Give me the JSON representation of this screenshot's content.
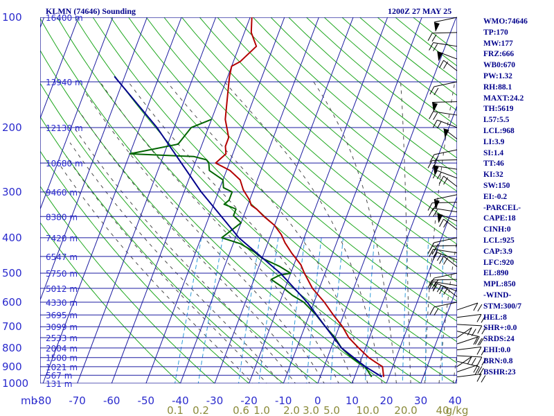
{
  "header": {
    "station": "KLMN (74646) Sounding",
    "valid_time": "1200Z 27 MAY 25"
  },
  "colors": {
    "frame": "#00008b",
    "isobar": "#1a1aa0",
    "dry_adiabat": "#1fa71f",
    "moist_adiabat": "#4a4a4a",
    "mixing_ratio": "#2a9ad8",
    "temperature": "#b40000",
    "dewpoint": "#006400",
    "parcel": "#00008b",
    "axis_text": "#2a2acd",
    "mixing_ratio_text": "#8b8b3a"
  },
  "indices": [
    "WMO:74646",
    "TP:170",
    "MW:177",
    "FRZ:666",
    "WB0:670",
    "PW:1.32",
    "RH:88.1",
    "MAXT:24.2",
    "TH:5619",
    "L57:5.5",
    "LCL:968",
    "LI:3.9",
    "SI:1.4",
    "TT:46",
    "KI:32",
    "SW:150",
    "EI:-0.2",
    "-PARCEL-",
    "CAPE:18",
    "CINH:0",
    "LCL:925",
    "CAP:3.9",
    "LFC:920",
    "EL:890",
    "MPL:850",
    "-WIND-",
    "STM:300/7",
    "HEL:8",
    "SHR+:0.0",
    "SRDS:24",
    "EHI:0.0",
    "BRN:0.8",
    "BSHR:23"
  ],
  "chart_data": {
    "type": "skew-t",
    "x_axis": {
      "unit_label": "mb",
      "tick_labels": [
        "-80",
        "-70",
        "-60",
        "-50",
        "-40",
        "-30",
        "-20",
        "-10",
        "0",
        "10",
        "20",
        "30",
        "40"
      ],
      "ticks": [
        -80,
        -70,
        -60,
        -50,
        -40,
        -30,
        -20,
        -10,
        0,
        10,
        20,
        30,
        40
      ],
      "range": [
        -80,
        40
      ]
    },
    "y_axis": {
      "scale": "log",
      "ticks": [
        100,
        200,
        300,
        400,
        500,
        600,
        700,
        800,
        900,
        1000
      ],
      "tick_labels": [
        "100",
        "200",
        "300",
        "400",
        "500",
        "600",
        "700",
        "800",
        "900",
        "1000"
      ],
      "range": [
        100,
        1000
      ]
    },
    "height_labels": [
      {
        "p": 100,
        "text": "16400 m"
      },
      {
        "p": 150,
        "text": "13940 m"
      },
      {
        "p": 200,
        "text": "12130 m"
      },
      {
        "p": 250,
        "text": "10680 m"
      },
      {
        "p": 300,
        "text": "9460 m"
      },
      {
        "p": 350,
        "text": "8380 m"
      },
      {
        "p": 400,
        "text": "7420 m"
      },
      {
        "p": 450,
        "text": "6547 m"
      },
      {
        "p": 500,
        "text": "5750 m"
      },
      {
        "p": 550,
        "text": "5012 m"
      },
      {
        "p": 600,
        "text": "4330 m"
      },
      {
        "p": 650,
        "text": "3695 m"
      },
      {
        "p": 700,
        "text": "3099 m"
      },
      {
        "p": 750,
        "text": "2533 m"
      },
      {
        "p": 800,
        "text": "2004 m"
      },
      {
        "p": 850,
        "text": "1500 m"
      },
      {
        "p": 900,
        "text": "1021 m"
      },
      {
        "p": 950,
        "text": "567 m"
      },
      {
        "p": 1000,
        "text": "131 m"
      }
    ],
    "extra_isobars": [
      150,
      250,
      350,
      450,
      550,
      650,
      750,
      850,
      950
    ],
    "mixing_ratio_labels": [
      "0.1",
      "0.2",
      "0.6",
      "1.0",
      "2.0",
      "3.0",
      "5.0",
      "10.0",
      "20.0",
      "40",
      "g/kg"
    ],
    "series": [
      {
        "key": "temperature",
        "points": [
          [
            100,
            -59.5
          ],
          [
            110,
            -58
          ],
          [
            120,
            -55
          ],
          [
            132,
            -58
          ],
          [
            136,
            -60
          ],
          [
            145,
            -59.5
          ],
          [
            163,
            -58
          ],
          [
            190,
            -56
          ],
          [
            205,
            -54
          ],
          [
            213,
            -53
          ],
          [
            225,
            -53
          ],
          [
            236,
            -52
          ],
          [
            250,
            -54
          ],
          [
            262,
            -49
          ],
          [
            278,
            -45
          ],
          [
            296,
            -43
          ],
          [
            316,
            -40
          ],
          [
            326,
            -39
          ],
          [
            334,
            -37
          ],
          [
            350,
            -34
          ],
          [
            370,
            -30
          ],
          [
            392,
            -27
          ],
          [
            413,
            -25
          ],
          [
            440,
            -22
          ],
          [
            474,
            -18
          ],
          [
            500,
            -16
          ],
          [
            550,
            -12
          ],
          [
            600,
            -7
          ],
          [
            650,
            -3
          ],
          [
            700,
            1
          ],
          [
            750,
            4
          ],
          [
            800,
            8
          ],
          [
            850,
            12
          ],
          [
            870,
            14
          ],
          [
            880,
            15
          ],
          [
            900,
            17
          ],
          [
            940,
            18
          ],
          [
            960,
            18.5
          ]
        ]
      },
      {
        "key": "dewpoint",
        "points": [
          [
            190,
            -60
          ],
          [
            200,
            -65
          ],
          [
            222,
            -67
          ],
          [
            236,
            -80
          ],
          [
            240,
            -61
          ],
          [
            245,
            -57
          ],
          [
            250,
            -56
          ],
          [
            262,
            -55
          ],
          [
            278,
            -50
          ],
          [
            292,
            -49
          ],
          [
            300,
            -46
          ],
          [
            316,
            -46
          ],
          [
            324,
            -47
          ],
          [
            334,
            -43
          ],
          [
            348,
            -43
          ],
          [
            364,
            -40
          ],
          [
            400,
            -44
          ],
          [
            415,
            -38
          ],
          [
            437,
            -33
          ],
          [
            455,
            -30
          ],
          [
            479,
            -24
          ],
          [
            500,
            -20
          ],
          [
            506,
            -23
          ],
          [
            520,
            -25
          ],
          [
            545,
            -21
          ],
          [
            575,
            -17
          ],
          [
            600,
            -13
          ],
          [
            650,
            -8
          ],
          [
            700,
            -4
          ],
          [
            750,
            0
          ],
          [
            800,
            3
          ],
          [
            850,
            7
          ],
          [
            880,
            10
          ],
          [
            900,
            12
          ],
          [
            940,
            14
          ],
          [
            960,
            15
          ]
        ]
      },
      {
        "key": "parcel",
        "points": [
          [
            145,
            -93
          ],
          [
            200,
            -75
          ],
          [
            300,
            -55
          ],
          [
            400,
            -39
          ],
          [
            500,
            -23
          ],
          [
            600,
            -12
          ],
          [
            700,
            -4
          ],
          [
            800,
            3
          ],
          [
            900,
            12
          ],
          [
            960,
            18
          ]
        ]
      }
    ]
  }
}
